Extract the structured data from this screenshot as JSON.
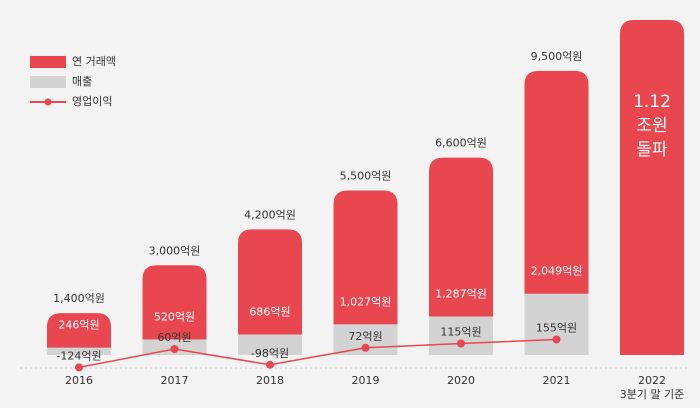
{
  "chart_data": {
    "type": "bar",
    "categories": [
      "2016",
      "2017",
      "2018",
      "2019",
      "2020",
      "2021",
      "2022"
    ],
    "series": [
      {
        "name": "연 거래액",
        "color": "#e8474f",
        "values": [
          1400,
          3000,
          4200,
          5500,
          6600,
          9500,
          11200
        ],
        "value_labels": [
          "1,400억원",
          "3,000억원",
          "4,200억원",
          "5,500억원",
          "6,600억원",
          "9,500억원",
          "1.12\n조원\n돌파"
        ]
      },
      {
        "name": "매출",
        "color": "#d3d3d3",
        "values": [
          246,
          520,
          686,
          1027,
          1287,
          2049,
          null
        ],
        "value_labels": [
          "246억원",
          "520억원",
          "686억원",
          "1,027억원",
          "1,287억원",
          "2,049억원",
          null
        ]
      },
      {
        "name": "영업이익",
        "type": "line",
        "axis": "y2",
        "color": "#e8474f",
        "values": [
          -124,
          60,
          -98,
          72,
          115,
          155,
          null
        ],
        "value_labels": [
          "-124억원",
          "60억원",
          "-98억원",
          "72억원",
          "115억원",
          "155억원",
          null
        ]
      }
    ],
    "annotations": [
      "3분기 말 기준"
    ]
  }
}
